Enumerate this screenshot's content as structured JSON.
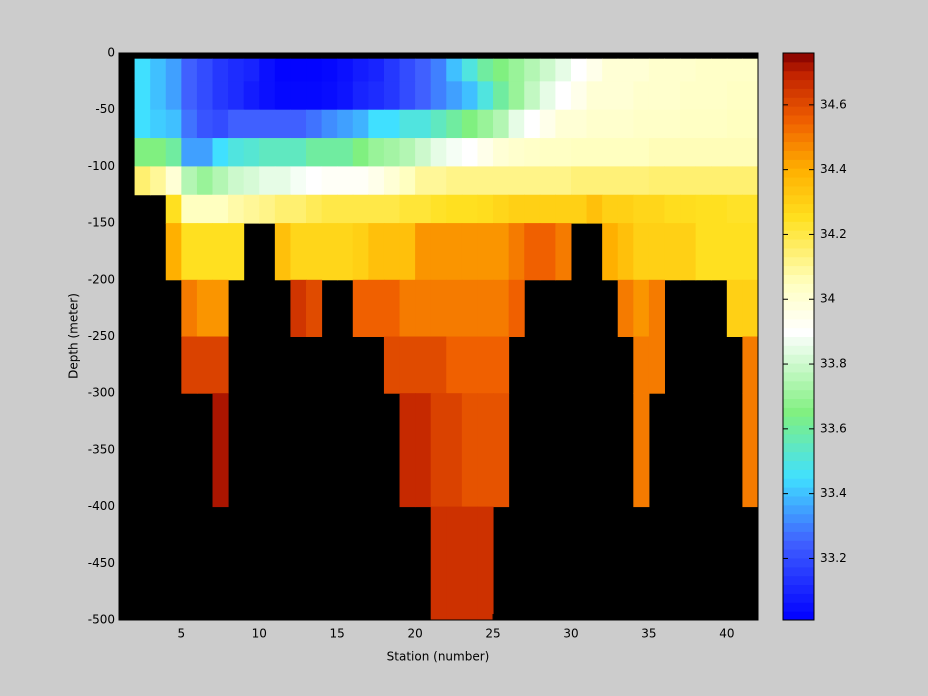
{
  "chart_data": {
    "type": "heatmap",
    "xlabel": "Station (number)",
    "ylabel": "Depth (meter)",
    "xlim": [
      1,
      42
    ],
    "ylim": [
      -500,
      0
    ],
    "xticks": [
      5,
      10,
      15,
      20,
      25,
      30,
      35,
      40
    ],
    "yticks": [
      0,
      -50,
      -100,
      -150,
      -200,
      -250,
      -300,
      -350,
      -400,
      -450,
      -500
    ],
    "x_edges": [
      2,
      3,
      4,
      5,
      6,
      7,
      8,
      9,
      10,
      11,
      12,
      13,
      14,
      15,
      16,
      17,
      18,
      19,
      20,
      21,
      22,
      23,
      24,
      25,
      26,
      27,
      28,
      29,
      30,
      31,
      32,
      33,
      34,
      35,
      36,
      37,
      38,
      39,
      40,
      41,
      42
    ],
    "y_edges": [
      -5,
      -25,
      -50,
      -75,
      -100,
      -125,
      -150,
      -200,
      -250,
      -300,
      -400,
      -500
    ],
    "clim": [
      33.01,
      34.76
    ],
    "cticks": [
      33.2,
      33.4,
      33.6,
      33.8,
      34,
      34.2,
      34.4,
      34.6
    ],
    "colormap": [
      [
        33.01,
        "#0000ff"
      ],
      [
        33.25,
        "#4060ff"
      ],
      [
        33.45,
        "#40e0ff"
      ],
      [
        33.65,
        "#80f080"
      ],
      [
        33.9,
        "#ffffff"
      ],
      [
        34.05,
        "#ffffc0"
      ],
      [
        34.25,
        "#ffe020"
      ],
      [
        34.4,
        "#ffb000"
      ],
      [
        34.55,
        "#f06000"
      ],
      [
        34.7,
        "#c02000"
      ],
      [
        34.76,
        "#800000"
      ]
    ],
    "z": [
      [
        33.45,
        33.4,
        33.35,
        33.25,
        33.2,
        33.15,
        33.12,
        33.1,
        33.05,
        33.02,
        33.02,
        33.02,
        33.03,
        33.05,
        33.08,
        33.1,
        33.15,
        33.2,
        33.25,
        33.3,
        33.4,
        33.5,
        33.6,
        33.65,
        33.7,
        33.75,
        33.8,
        33.85,
        33.9,
        33.95,
        34,
        34,
        34,
        34.02,
        34.02,
        34.02,
        34.03,
        34.03,
        34.03,
        34.03
      ],
      [
        33.45,
        33.4,
        33.35,
        33.25,
        33.2,
        33.15,
        33.12,
        33.08,
        33.05,
        33.03,
        33.03,
        33.03,
        33.04,
        33.06,
        33.1,
        33.12,
        33.15,
        33.2,
        33.25,
        33.3,
        33.35,
        33.4,
        33.5,
        33.6,
        33.7,
        33.78,
        33.85,
        33.9,
        33.95,
        34,
        34,
        34,
        34.02,
        34.02,
        34.02,
        34.03,
        34.03,
        34.03,
        34.04,
        34.04
      ],
      [
        33.45,
        33.42,
        33.4,
        33.28,
        33.22,
        33.2,
        33.25,
        33.25,
        33.25,
        33.25,
        33.25,
        33.28,
        33.32,
        33.35,
        33.38,
        33.45,
        33.45,
        33.5,
        33.5,
        33.55,
        33.6,
        33.65,
        33.7,
        33.75,
        33.85,
        33.9,
        33.95,
        34,
        34,
        34.02,
        34.02,
        34.02,
        34.03,
        34.03,
        34.03,
        34.04,
        34.04,
        34.04,
        34.05,
        34.05
      ],
      [
        33.65,
        33.65,
        33.6,
        33.35,
        33.35,
        33.45,
        33.5,
        33.52,
        33.55,
        33.55,
        33.55,
        33.6,
        33.6,
        33.6,
        33.65,
        33.7,
        33.72,
        33.75,
        33.8,
        33.85,
        33.88,
        33.9,
        33.95,
        34,
        34.02,
        34.03,
        34.04,
        34.04,
        34.05,
        34.05,
        34.05,
        34.05,
        34.05,
        34.06,
        34.06,
        34.06,
        34.06,
        34.06,
        34.06,
        34.06
      ],
      [
        34.15,
        34.1,
        34,
        33.75,
        33.7,
        33.75,
        33.8,
        33.82,
        33.85,
        33.85,
        33.88,
        33.9,
        33.92,
        33.92,
        33.92,
        33.95,
        34,
        34.05,
        34.1,
        34.1,
        34.12,
        34.12,
        34.12,
        34.12,
        34.12,
        34.12,
        34.12,
        34.12,
        34.14,
        34.14,
        34.14,
        34.14,
        34.14,
        34.15,
        34.15,
        34.15,
        34.15,
        34.15,
        34.15,
        34.15
      ],
      [
        null,
        null,
        34.25,
        34.05,
        34.05,
        34.05,
        34.08,
        34.1,
        34.12,
        34.15,
        34.15,
        34.18,
        34.2,
        34.2,
        34.2,
        34.2,
        34.2,
        34.22,
        34.22,
        34.24,
        34.25,
        34.25,
        34.26,
        34.28,
        34.3,
        34.3,
        34.3,
        34.3,
        34.3,
        34.35,
        34.3,
        34.3,
        34.28,
        34.28,
        34.26,
        34.26,
        34.25,
        34.25,
        34.24,
        34.24
      ],
      [
        null,
        null,
        34.4,
        34.25,
        34.25,
        34.25,
        34.25,
        null,
        null,
        34.35,
        34.28,
        34.28,
        34.28,
        34.28,
        34.3,
        34.35,
        34.35,
        34.35,
        34.45,
        34.45,
        34.45,
        34.45,
        34.45,
        34.45,
        34.5,
        34.55,
        34.55,
        34.5,
        null,
        null,
        34.4,
        34.35,
        34.3,
        34.3,
        34.3,
        34.3,
        34.25,
        34.25,
        34.25,
        34.25
      ],
      [
        null,
        null,
        null,
        34.5,
        34.45,
        34.45,
        null,
        null,
        null,
        null,
        34.65,
        34.6,
        null,
        null,
        34.55,
        34.55,
        34.55,
        34.5,
        34.5,
        34.5,
        34.5,
        34.5,
        34.5,
        34.5,
        34.55,
        null,
        null,
        null,
        null,
        null,
        null,
        34.5,
        34.45,
        34.5,
        null,
        null,
        null,
        null,
        34.3,
        34.3
      ],
      [
        null,
        null,
        null,
        34.62,
        34.62,
        34.62,
        null,
        null,
        null,
        null,
        null,
        null,
        null,
        null,
        null,
        null,
        34.6,
        34.6,
        34.6,
        34.6,
        34.55,
        34.55,
        34.55,
        34.55,
        null,
        null,
        null,
        null,
        null,
        null,
        null,
        null,
        34.5,
        34.5,
        null,
        null,
        null,
        null,
        null,
        34.5
      ],
      [
        null,
        null,
        null,
        null,
        null,
        34.72,
        null,
        null,
        null,
        null,
        null,
        null,
        null,
        null,
        null,
        null,
        null,
        34.68,
        34.68,
        34.62,
        34.62,
        34.58,
        34.58,
        34.58,
        null,
        null,
        null,
        null,
        null,
        null,
        null,
        null,
        34.5,
        null,
        null,
        null,
        null,
        null,
        null,
        34.5
      ],
      [
        null,
        null,
        null,
        null,
        null,
        null,
        null,
        null,
        null,
        null,
        null,
        null,
        null,
        null,
        null,
        null,
        null,
        null,
        null,
        34.66,
        34.66,
        34.66,
        34.66,
        null,
        null,
        null,
        null,
        null,
        null,
        null,
        null,
        null,
        null,
        null,
        null,
        null,
        null,
        null,
        null,
        null
      ]
    ]
  }
}
